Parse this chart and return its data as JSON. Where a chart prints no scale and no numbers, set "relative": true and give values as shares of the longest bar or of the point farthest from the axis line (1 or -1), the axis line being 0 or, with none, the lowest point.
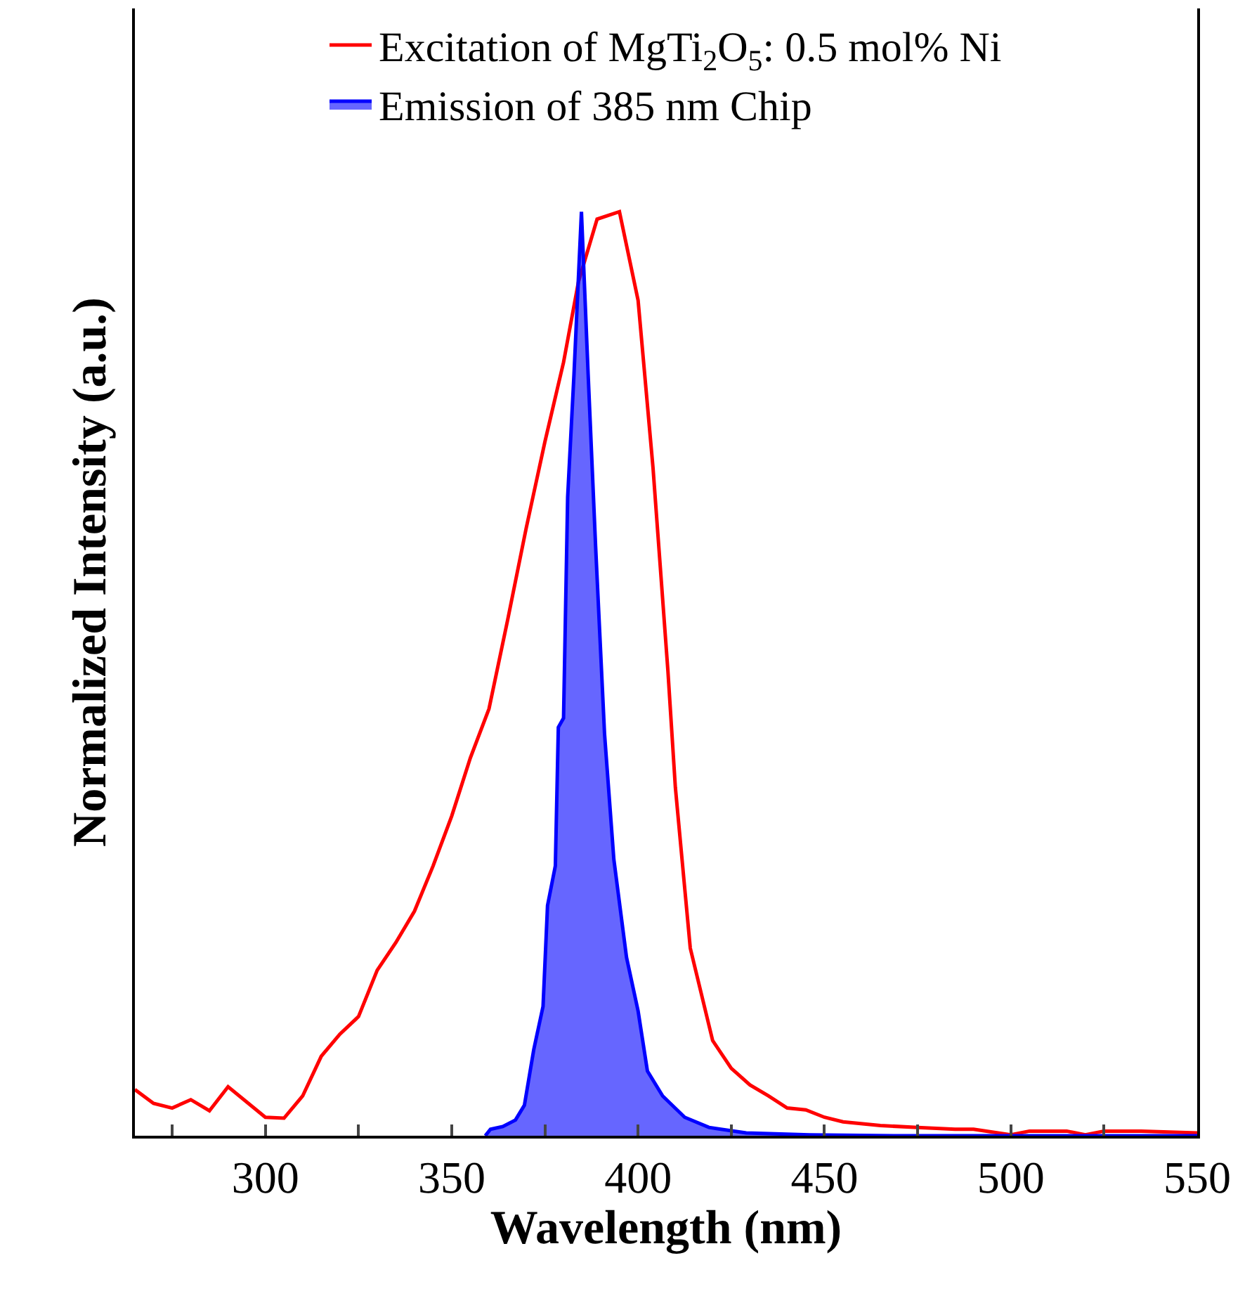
{
  "chart_data": {
    "type": "line",
    "relative": true,
    "xlabel": "Wavelength (nm)",
    "ylabel": "Normalized Intensity (a.u.)",
    "xlim": [
      265,
      550
    ],
    "xticks": [
      {
        "value": 275,
        "label": null
      },
      300,
      {
        "value": 325,
        "label": null
      },
      350,
      {
        "value": 375,
        "label": null
      },
      400,
      {
        "value": 425,
        "label": null
      },
      450,
      {
        "value": 475,
        "label": null
      },
      500,
      {
        "value": 525,
        "label": null
      },
      550
    ],
    "legend": "top",
    "series": [
      {
        "name": "Excitation of MgTi$_{2}$O$_{5}$: 0.5 mol% Ni",
        "color": "#ff0000",
        "x": [
          265,
          270,
          275,
          280,
          285,
          290,
          300,
          305,
          310,
          315,
          320,
          325,
          330,
          335,
          340,
          345,
          350,
          355,
          360,
          365,
          370,
          375,
          380,
          384,
          389,
          395,
          400,
          404,
          408,
          410,
          414,
          420,
          425,
          430,
          435,
          440,
          445,
          450,
          455,
          465,
          475,
          485,
          490,
          500,
          505,
          515,
          520,
          525,
          535,
          550
        ],
        "values": [
          0.05,
          0.035,
          0.03,
          0.039,
          0.027,
          0.053,
          0.02,
          0.019,
          0.043,
          0.086,
          0.11,
          0.129,
          0.179,
          0.209,
          0.243,
          0.292,
          0.346,
          0.409,
          0.462,
          0.558,
          0.658,
          0.751,
          0.837,
          0.924,
          0.992,
          1.0,
          0.904,
          0.723,
          0.503,
          0.377,
          0.203,
          0.103,
          0.073,
          0.055,
          0.043,
          0.03,
          0.028,
          0.02,
          0.015,
          0.011,
          0.009,
          0.007,
          0.007,
          0.001,
          0.005,
          0.005,
          0.001,
          0.005,
          0.005,
          0.003
        ]
      },
      {
        "name": "Emission of 385 nm Chip",
        "type": "area",
        "color": "#0000ff",
        "x": [
          359,
          360.4,
          363.7,
          367.1,
          369.5,
          372,
          374.5,
          375.7,
          377.8,
          378.6,
          380,
          381.1,
          382.8,
          384.8,
          386.6,
          388.6,
          391,
          393.5,
          396.9,
          400,
          402.5,
          406.6,
          412.5,
          419,
          429,
          446,
          470,
          500,
          550
        ],
        "values": [
          0,
          0.007,
          0.01,
          0.017,
          0.033,
          0.093,
          0.14,
          0.249,
          0.292,
          0.442,
          0.452,
          0.691,
          0.824,
          1.0,
          0.824,
          0.638,
          0.435,
          0.299,
          0.193,
          0.135,
          0.07,
          0.043,
          0.02,
          0.009,
          0.003,
          0.001,
          0,
          0,
          0
        ]
      }
    ]
  }
}
